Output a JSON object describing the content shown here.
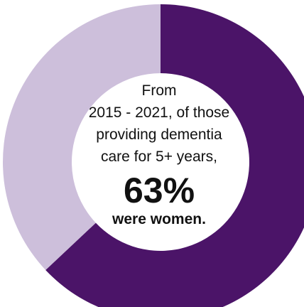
{
  "chart_data": {
    "type": "pie",
    "slices": [
      {
        "value": 63,
        "color": "#4b1468"
      },
      {
        "value": 37,
        "color": "#cdbfdb"
      }
    ],
    "annotation": {
      "lines": [
        "From",
        "2015 - 2021, of those",
        "providing dementia",
        "care for 5+ years,"
      ],
      "value_label": "63%",
      "sub_label": "were women."
    }
  }
}
